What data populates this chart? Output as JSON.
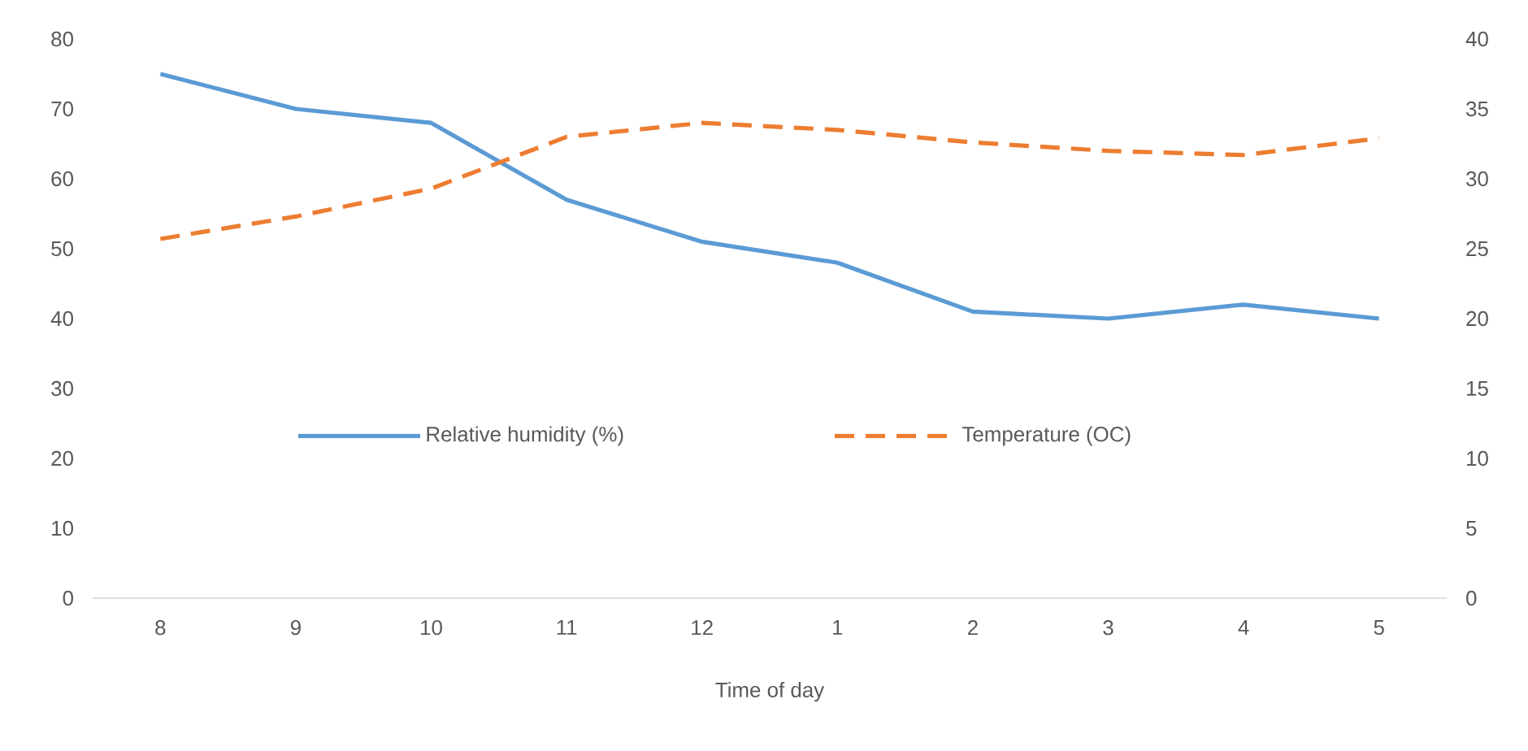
{
  "chart_data": {
    "type": "line",
    "xlabel": "Time of day",
    "categories": [
      "8",
      "9",
      "10",
      "11",
      "12",
      "1",
      "2",
      "3",
      "4",
      "5"
    ],
    "series": [
      {
        "name": "Relative humidity (%)",
        "color": "#5b9bd5",
        "line_style": "solid",
        "values": [
          75,
          70,
          68,
          57,
          51,
          48,
          41,
          40,
          42,
          40
        ]
      },
      {
        "name": "Temperature (OC)",
        "color": "#ed7d31",
        "line_style": "dashed",
        "axis": "y2",
        "values": [
          25.7,
          27.3,
          29.3,
          33,
          34,
          33.5,
          32.6,
          32,
          31.7,
          32.9
        ]
      }
    ],
    "ylim": [
      0,
      80
    ],
    "yticks": [
      0,
      10,
      20,
      30,
      40,
      50,
      60,
      70,
      80
    ],
    "y2lim": [
      0,
      40
    ],
    "y2ticks": [
      0,
      5,
      10,
      15,
      20,
      25,
      30,
      35,
      40
    ],
    "legend": "center"
  }
}
